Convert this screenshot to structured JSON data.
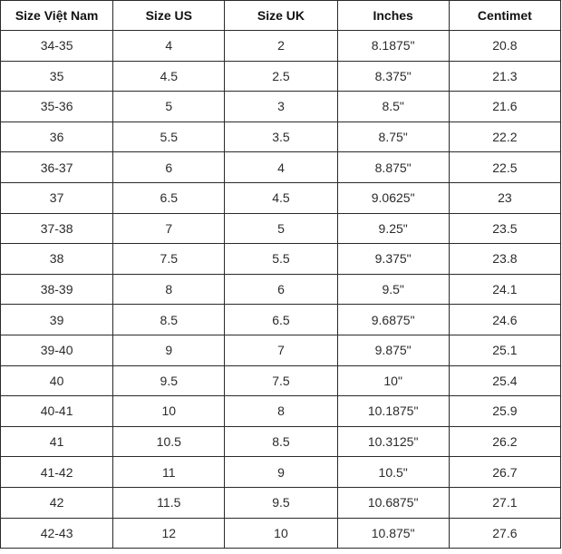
{
  "table": {
    "headers": [
      "Size Việt Nam",
      "Size US",
      "Size UK",
      "Inches",
      "Centimet"
    ],
    "rows": [
      [
        "34-35",
        "4",
        "2",
        "8.1875\"",
        "20.8"
      ],
      [
        "35",
        "4.5",
        "2.5",
        "8.375\"",
        "21.3"
      ],
      [
        "35-36",
        "5",
        "3",
        "8.5\"",
        "21.6"
      ],
      [
        "36",
        "5.5",
        "3.5",
        "8.75\"",
        "22.2"
      ],
      [
        "36-37",
        "6",
        "4",
        "8.875\"",
        "22.5"
      ],
      [
        "37",
        "6.5",
        "4.5",
        "9.0625\"",
        "23"
      ],
      [
        "37-38",
        "7",
        "5",
        "9.25\"",
        "23.5"
      ],
      [
        "38",
        "7.5",
        "5.5",
        "9.375\"",
        "23.8"
      ],
      [
        "38-39",
        "8",
        "6",
        "9.5\"",
        "24.1"
      ],
      [
        "39",
        "8.5",
        "6.5",
        "9.6875\"",
        "24.6"
      ],
      [
        "39-40",
        "9",
        "7",
        "9.875\"",
        "25.1"
      ],
      [
        "40",
        "9.5",
        "7.5",
        "10\"",
        "25.4"
      ],
      [
        "40-41",
        "10",
        "8",
        "10.1875\"",
        "25.9"
      ],
      [
        "41",
        "10.5",
        "8.5",
        "10.3125\"",
        "26.2"
      ],
      [
        "41-42",
        "11",
        "9",
        "10.5\"",
        "26.7"
      ],
      [
        "42",
        "11.5",
        "9.5",
        "10.6875\"",
        "27.1"
      ],
      [
        "42-43",
        "12",
        "10",
        "10.875\"",
        "27.6"
      ]
    ]
  }
}
